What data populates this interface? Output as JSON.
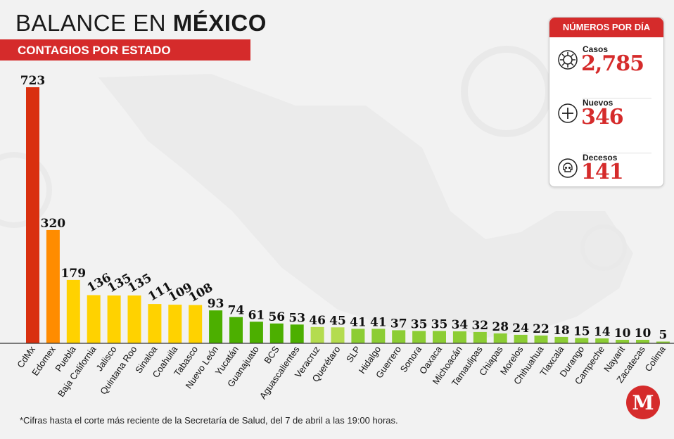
{
  "header": {
    "title_regular": "BALANCE EN ",
    "title_bold": "MÉXICO",
    "subtitle": "CONTAGIOS POR ESTADO"
  },
  "summary": {
    "title": "NÚMEROS POR DÍA",
    "cases": {
      "label": "Casos",
      "value": "2,785",
      "icon": "virus-icon"
    },
    "new": {
      "label": "Nuevos",
      "value": "346",
      "icon": "plus-icon"
    },
    "deaths": {
      "label": "Decesos",
      "value": "141",
      "icon": "skull-icon"
    }
  },
  "footnote": "*Cifras hasta el corte más reciente de la Secretaría de Salud, del 7 de abril a las 19:00 horas.",
  "logo": {
    "letter": "M",
    "color": "#d52b2b",
    "icon": "milenio-logo"
  },
  "colors": {
    "accent": "#d52b2b",
    "red": "#d9300f",
    "orange": "#ff8c00",
    "yellow": "#ffd200",
    "dark_green": "#4caf00",
    "mid_green": "#8ccd34",
    "light_green": "#b4dc4f"
  },
  "chart_data": {
    "type": "bar",
    "categories": [
      "CdMx",
      "Edomex",
      "Puebla",
      "Baja California",
      "Jalisco",
      "Quintana Roo",
      "Sinaloa",
      "Coahuila",
      "Tabasco",
      "Nuevo León",
      "Yucatán",
      "Guanajuato",
      "BCS",
      "Aguascalientes",
      "Veracruz",
      "Querétaro",
      "SLP",
      "Hidalgo",
      "Guerrero",
      "Sonora",
      "Oaxaca",
      "Michoacán",
      "Tamaulipas",
      "Chiapas",
      "Morelos",
      "Chihuahua",
      "Tlaxcala",
      "Durango",
      "Campeche",
      "Nayarit",
      "Zacatecas",
      "Colima"
    ],
    "values": [
      723,
      320,
      179,
      136,
      135,
      135,
      111,
      109,
      108,
      93,
      74,
      61,
      56,
      53,
      46,
      45,
      41,
      41,
      37,
      35,
      35,
      34,
      32,
      28,
      24,
      22,
      18,
      15,
      14,
      10,
      10,
      5
    ],
    "value_labels": [
      "723",
      "320",
      "179",
      "136",
      "135",
      "135",
      "111",
      "109",
      "108",
      "93",
      "74",
      "61",
      "56",
      "53",
      "46",
      "45",
      "41",
      "41",
      "37",
      "35",
      "35",
      "34",
      "32",
      "28",
      "24",
      "22",
      "18",
      "15",
      "14",
      "10",
      "10",
      "5"
    ],
    "bar_colors": [
      "red",
      "orange",
      "yellow",
      "yellow",
      "yellow",
      "yellow",
      "yellow",
      "yellow",
      "yellow",
      "dark_green",
      "dark_green",
      "dark_green",
      "dark_green",
      "dark_green",
      "light_green",
      "light_green",
      "mid_green",
      "mid_green",
      "mid_green",
      "mid_green",
      "mid_green",
      "mid_green",
      "mid_green",
      "mid_green",
      "mid_green",
      "mid_green",
      "mid_green",
      "mid_green",
      "mid_green",
      "mid_green",
      "mid_green",
      "mid_green"
    ],
    "title": "CONTAGIOS POR ESTADO",
    "xlabel": "",
    "ylabel": "",
    "ylim": [
      0,
      723
    ],
    "grid": false,
    "legend": "none"
  }
}
